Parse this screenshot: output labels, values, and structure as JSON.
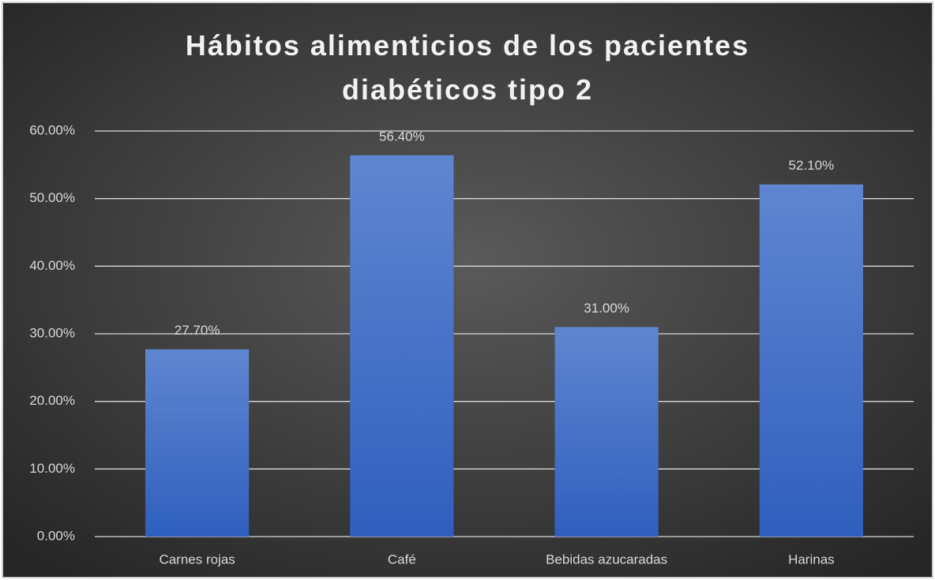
{
  "chart_data": {
    "type": "bar",
    "title": "Hábitos alimenticios de los pacientes diabéticos tipo 2",
    "categories": [
      "Carnes rojas",
      "Café",
      "Bebidas azucaradas",
      "Harinas"
    ],
    "values": [
      27.7,
      56.4,
      31.0,
      52.1
    ],
    "value_labels": [
      "27.70%",
      "56.40%",
      "31.00%",
      "52.10%"
    ],
    "color": "#4472c4",
    "ylim": [
      0,
      60
    ],
    "yticks": [
      {
        "value": 0,
        "label": "0.00%"
      },
      {
        "value": 10,
        "label": "10.00%"
      },
      {
        "value": 20,
        "label": "20.00%"
      },
      {
        "value": 30,
        "label": "30.00%"
      },
      {
        "value": 40,
        "label": "40.00%"
      },
      {
        "value": 50,
        "label": "50.00%"
      },
      {
        "value": 60,
        "label": "60.00%"
      }
    ],
    "grid": true
  }
}
